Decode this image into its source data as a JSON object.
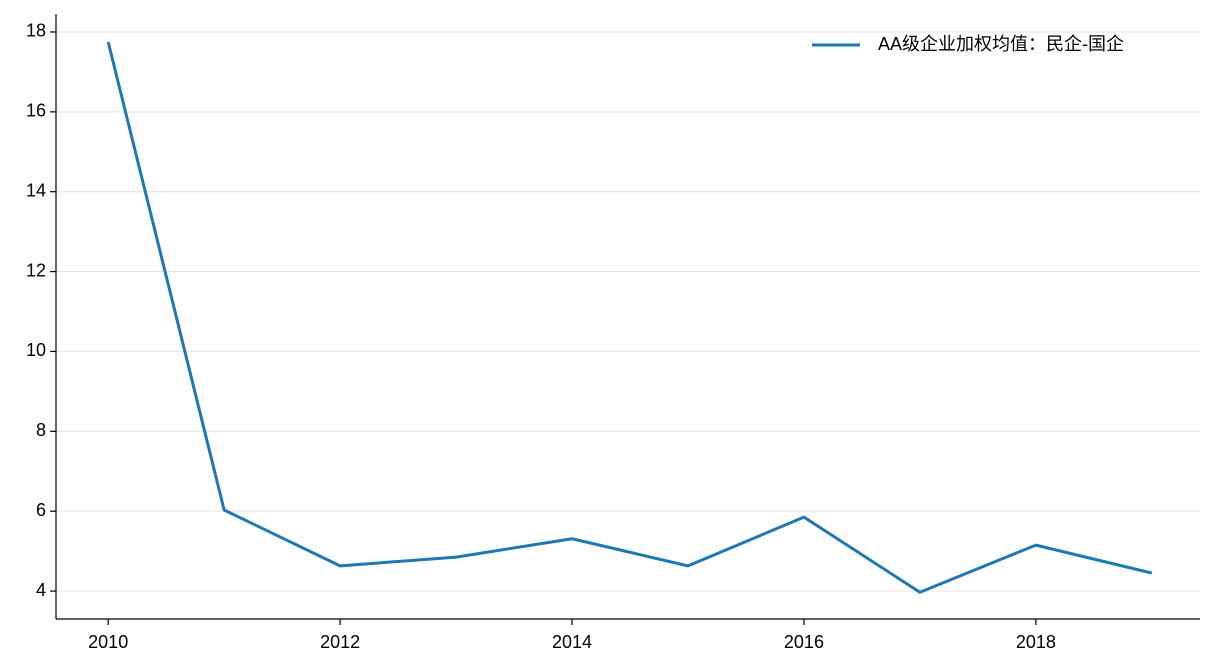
{
  "chart_data": {
    "type": "line",
    "x": [
      2010,
      2011,
      2012,
      2013,
      2014,
      2015,
      2016,
      2017,
      2018,
      2019
    ],
    "series": [
      {
        "name": "AA级企业加权均值：民企-国企",
        "color": "#1f77b4",
        "values": [
          17.75,
          6.03,
          4.63,
          4.85,
          5.31,
          4.63,
          5.85,
          3.97,
          5.15,
          4.45
        ]
      }
    ],
    "xlim": [
      2009.55,
      2019.45
    ],
    "xticks": [
      2010,
      2012,
      2014,
      2016,
      2018
    ],
    "ylim": [
      3.3,
      18.45
    ],
    "yticks": [
      4,
      6,
      8,
      10,
      12,
      14,
      16,
      18
    ],
    "grid": true,
    "legend": "upper right"
  }
}
